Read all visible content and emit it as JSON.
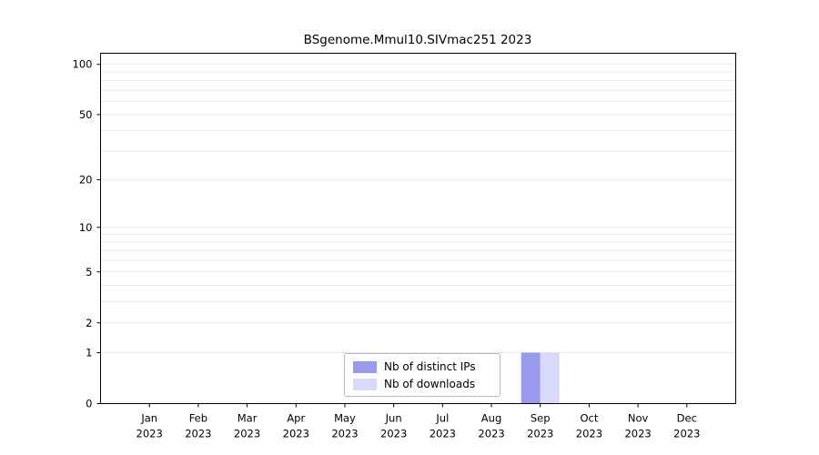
{
  "chart_data": {
    "type": "bar",
    "title": "BSgenome.Mmul10.SIVmac251 2023",
    "categories": [
      "Jan",
      "Feb",
      "Mar",
      "Apr",
      "May",
      "Jun",
      "Jul",
      "Aug",
      "Sep",
      "Oct",
      "Nov",
      "Dec"
    ],
    "year_label": "2023",
    "series": [
      {
        "name": "Nb of distinct IPs",
        "color": "#9999ee",
        "values": [
          0,
          0,
          0,
          0,
          0,
          0,
          0,
          0,
          1,
          0,
          0,
          0
        ]
      },
      {
        "name": "Nb of downloads",
        "color": "#d9d9f9",
        "values": [
          0,
          0,
          0,
          0,
          0,
          0,
          0,
          0,
          1,
          0,
          0,
          0
        ]
      }
    ],
    "y_ticks": [
      0,
      1,
      2,
      5,
      10,
      20,
      50,
      100
    ],
    "y_minor_grid": [
      1,
      2,
      3,
      4,
      5,
      6,
      7,
      8,
      9,
      10,
      20,
      30,
      40,
      50,
      60,
      70,
      80,
      90,
      100
    ],
    "y_scale": "log10(1+x)",
    "ylim": [
      0,
      100
    ],
    "xlabel": "",
    "ylabel": "",
    "grid": true,
    "legend_position": "bottom-center-inside",
    "colors": {
      "grid_line": "#e9e9e9",
      "axis": "#000000",
      "background": "#ffffff"
    }
  }
}
